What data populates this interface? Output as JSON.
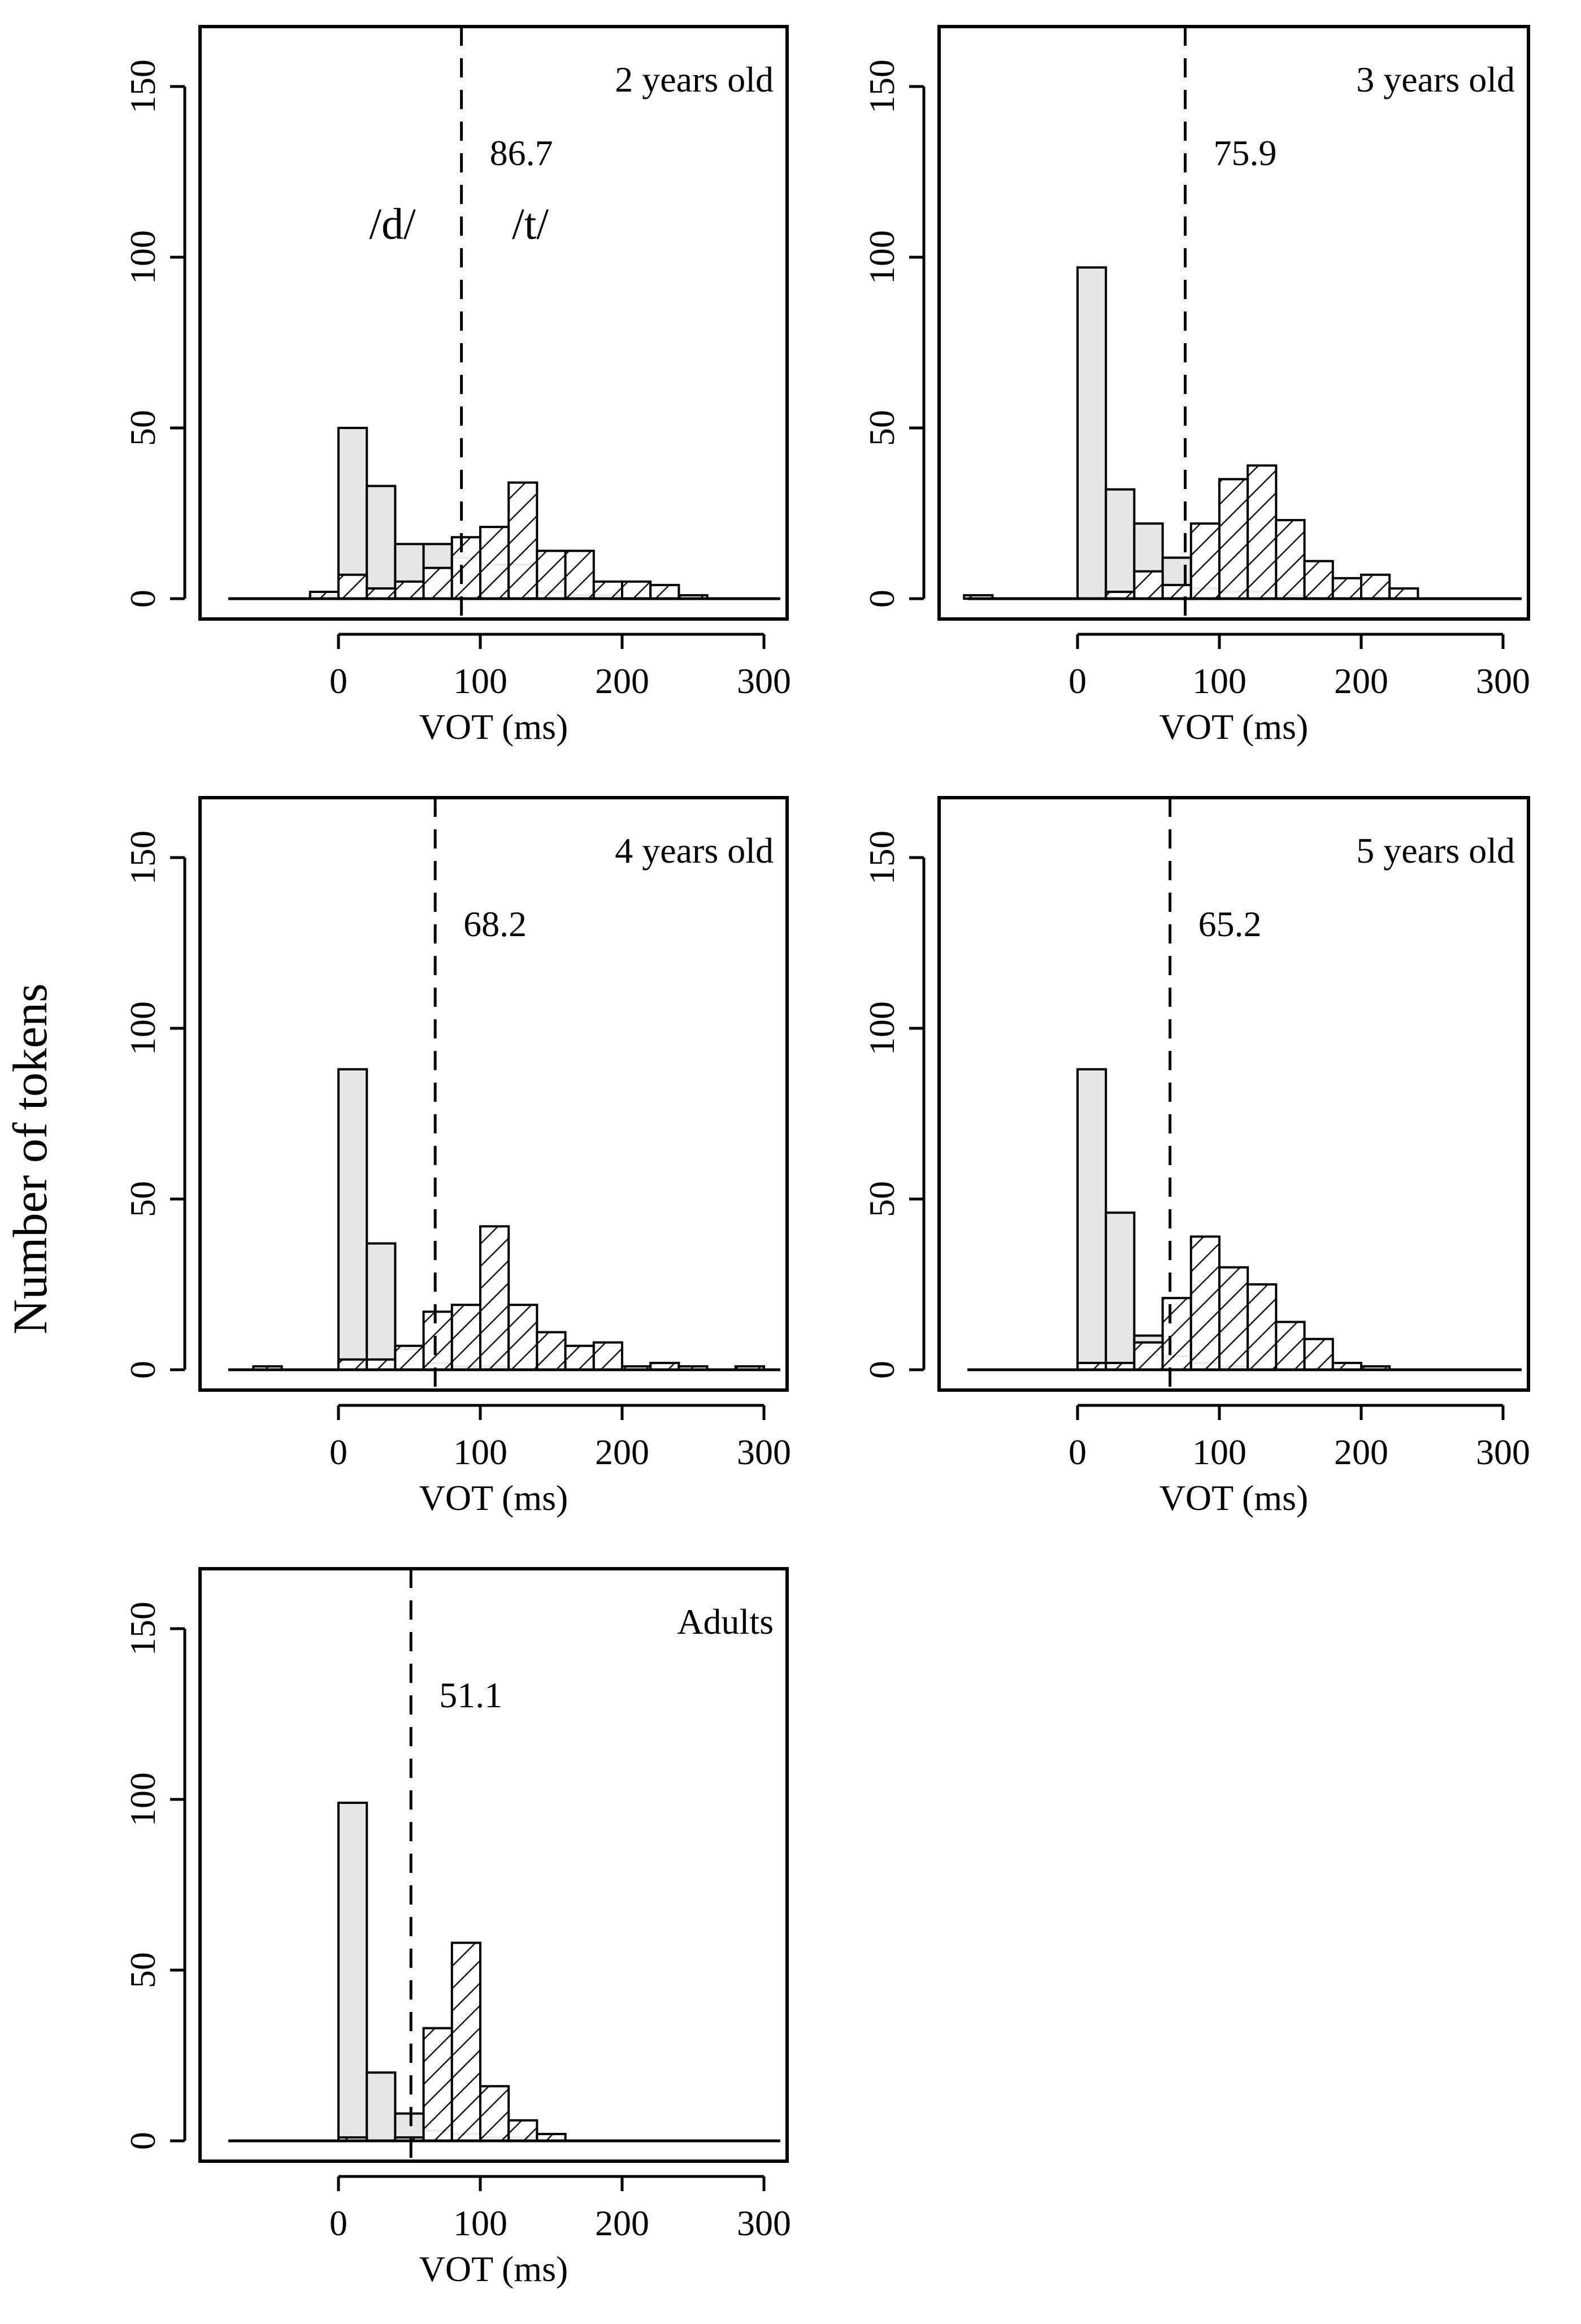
{
  "figure": {
    "ylabel": "Number of tokens"
  },
  "styles": {
    "d_fill": "#e6e6e6",
    "t_fill": "#ffffff",
    "stroke": "#000000"
  },
  "chart_data": [
    {
      "type": "histogram",
      "title": "2 years old",
      "xlabel": "VOT (ms)",
      "ylabel": "Number of tokens",
      "xlim": [
        -80,
        310
      ],
      "ylim": [
        0,
        160
      ],
      "xticks": [
        0,
        100,
        200,
        300
      ],
      "yticks": [
        0,
        50,
        100,
        150
      ],
      "boundary": 86.7,
      "boundary_label": "86.7",
      "category_labels": [
        "/d/",
        "/t/"
      ],
      "bin_edges": [
        -20,
        0,
        20,
        40,
        60,
        80,
        100,
        120,
        140,
        160,
        180,
        200,
        220,
        240,
        260
      ],
      "series": [
        {
          "name": "/d/",
          "fill": "gray",
          "values": [
            1,
            50,
            33,
            16,
            16,
            12,
            10,
            10,
            2,
            1,
            1,
            0,
            0,
            0
          ]
        },
        {
          "name": "/t/",
          "fill": "hatched",
          "values": [
            2,
            7,
            3,
            5,
            9,
            18,
            21,
            34,
            14,
            14,
            5,
            5,
            4,
            1
          ]
        }
      ]
    },
    {
      "type": "histogram",
      "title": "3 years old",
      "xlabel": "VOT (ms)",
      "ylabel": "Number of tokens",
      "xlim": [
        -80,
        310
      ],
      "ylim": [
        0,
        160
      ],
      "xticks": [
        0,
        100,
        200,
        300
      ],
      "yticks": [
        0,
        50,
        100,
        150
      ],
      "boundary": 75.9,
      "boundary_label": "75.9",
      "bin_edges": [
        -80,
        -60,
        -40,
        -20,
        0,
        20,
        40,
        60,
        80,
        100,
        120,
        140,
        160,
        180,
        200,
        220,
        240
      ],
      "series": [
        {
          "name": "/d/",
          "fill": "gray",
          "values": [
            0,
            0,
            0,
            0,
            97,
            32,
            22,
            12,
            3,
            2,
            2,
            1,
            0,
            0,
            0,
            0
          ]
        },
        {
          "name": "/t/",
          "fill": "hatched",
          "values": [
            1,
            0,
            0,
            0,
            0,
            2,
            8,
            4,
            22,
            35,
            39,
            23,
            11,
            6,
            7,
            3
          ]
        }
      ]
    },
    {
      "type": "histogram",
      "title": "4 years old",
      "xlabel": "VOT (ms)",
      "ylabel": "Number of tokens",
      "xlim": [
        -80,
        310
      ],
      "ylim": [
        0,
        160
      ],
      "xticks": [
        0,
        100,
        200,
        300
      ],
      "yticks": [
        0,
        50,
        100,
        150
      ],
      "boundary": 68.2,
      "boundary_label": "68.2",
      "bin_edges": [
        -60,
        -40,
        -20,
        0,
        20,
        40,
        60,
        80,
        100,
        120,
        140,
        160,
        180,
        200,
        220,
        240,
        260,
        280,
        300
      ],
      "series": [
        {
          "name": "/d/",
          "fill": "gray",
          "values": [
            0,
            0,
            0,
            88,
            37,
            6,
            2,
            1,
            1,
            0,
            0,
            0,
            0,
            0,
            0,
            0,
            0,
            0
          ]
        },
        {
          "name": "/t/",
          "fill": "hatched",
          "values": [
            1,
            0,
            0,
            3,
            3,
            7,
            17,
            19,
            42,
            19,
            11,
            7,
            8,
            1,
            2,
            1,
            0,
            1
          ]
        }
      ]
    },
    {
      "type": "histogram",
      "title": "5 years old",
      "xlabel": "VOT (ms)",
      "ylabel": "Number of tokens",
      "xlim": [
        -80,
        310
      ],
      "ylim": [
        0,
        160
      ],
      "xticks": [
        0,
        100,
        200,
        300
      ],
      "yticks": [
        0,
        50,
        100,
        150
      ],
      "boundary": 65.2,
      "boundary_label": "65.2",
      "bin_edges": [
        0,
        20,
        40,
        60,
        80,
        100,
        120,
        140,
        160,
        180,
        200,
        220
      ],
      "series": [
        {
          "name": "/d/",
          "fill": "gray",
          "values": [
            88,
            46,
            10,
            4,
            2,
            1,
            0,
            0,
            0,
            0,
            0
          ]
        },
        {
          "name": "/t/",
          "fill": "hatched",
          "values": [
            2,
            2,
            8,
            21,
            39,
            30,
            25,
            14,
            9,
            2,
            1
          ]
        }
      ]
    },
    {
      "type": "histogram",
      "title": "Adults",
      "xlabel": "VOT (ms)",
      "ylabel": "Number of tokens",
      "xlim": [
        -80,
        310
      ],
      "ylim": [
        0,
        160
      ],
      "xticks": [
        0,
        100,
        200,
        300
      ],
      "yticks": [
        0,
        50,
        100,
        150
      ],
      "boundary": 51.1,
      "boundary_label": "51.1",
      "bin_edges": [
        0,
        20,
        40,
        60,
        80,
        100,
        120,
        140,
        160
      ],
      "series": [
        {
          "name": "/d/",
          "fill": "gray",
          "values": [
            99,
            20,
            8,
            3,
            2,
            1,
            1,
            0
          ]
        },
        {
          "name": "/t/",
          "fill": "hatched",
          "values": [
            1,
            0,
            1,
            33,
            58,
            16,
            6,
            2
          ]
        }
      ]
    }
  ]
}
